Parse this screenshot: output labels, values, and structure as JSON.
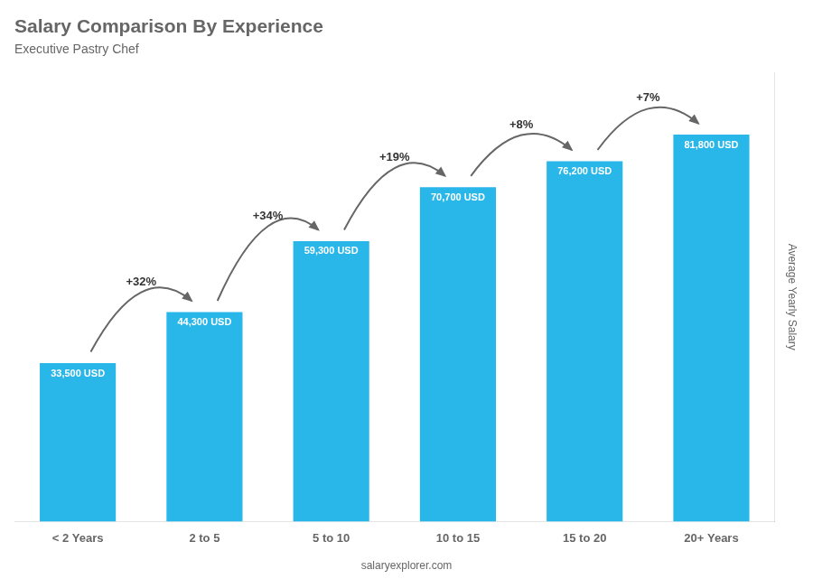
{
  "chart_data": {
    "type": "bar",
    "title": "Salary Comparison By Experience",
    "subtitle": "Executive Pastry Chef",
    "categories": [
      "< 2 Years",
      "2 to 5",
      "5 to 10",
      "10 to 15",
      "15 to 20",
      "20+ Years"
    ],
    "values": [
      33500,
      44300,
      59300,
      70700,
      76200,
      81800
    ],
    "value_labels": [
      "33,500 USD",
      "44,300 USD",
      "59,300 USD",
      "70,700 USD",
      "76,200 USD",
      "81,800 USD"
    ],
    "data_labels": true,
    "color": "#29b6e8",
    "ylabel": "Average Yearly Salary",
    "ylim": [
      0,
      95000
    ],
    "tick_labels": "x",
    "grid": false,
    "annotations": [
      "+32%",
      "+34%",
      "+19%",
      "+8%",
      "+7%"
    ],
    "footer": "salaryexplorer.com"
  }
}
